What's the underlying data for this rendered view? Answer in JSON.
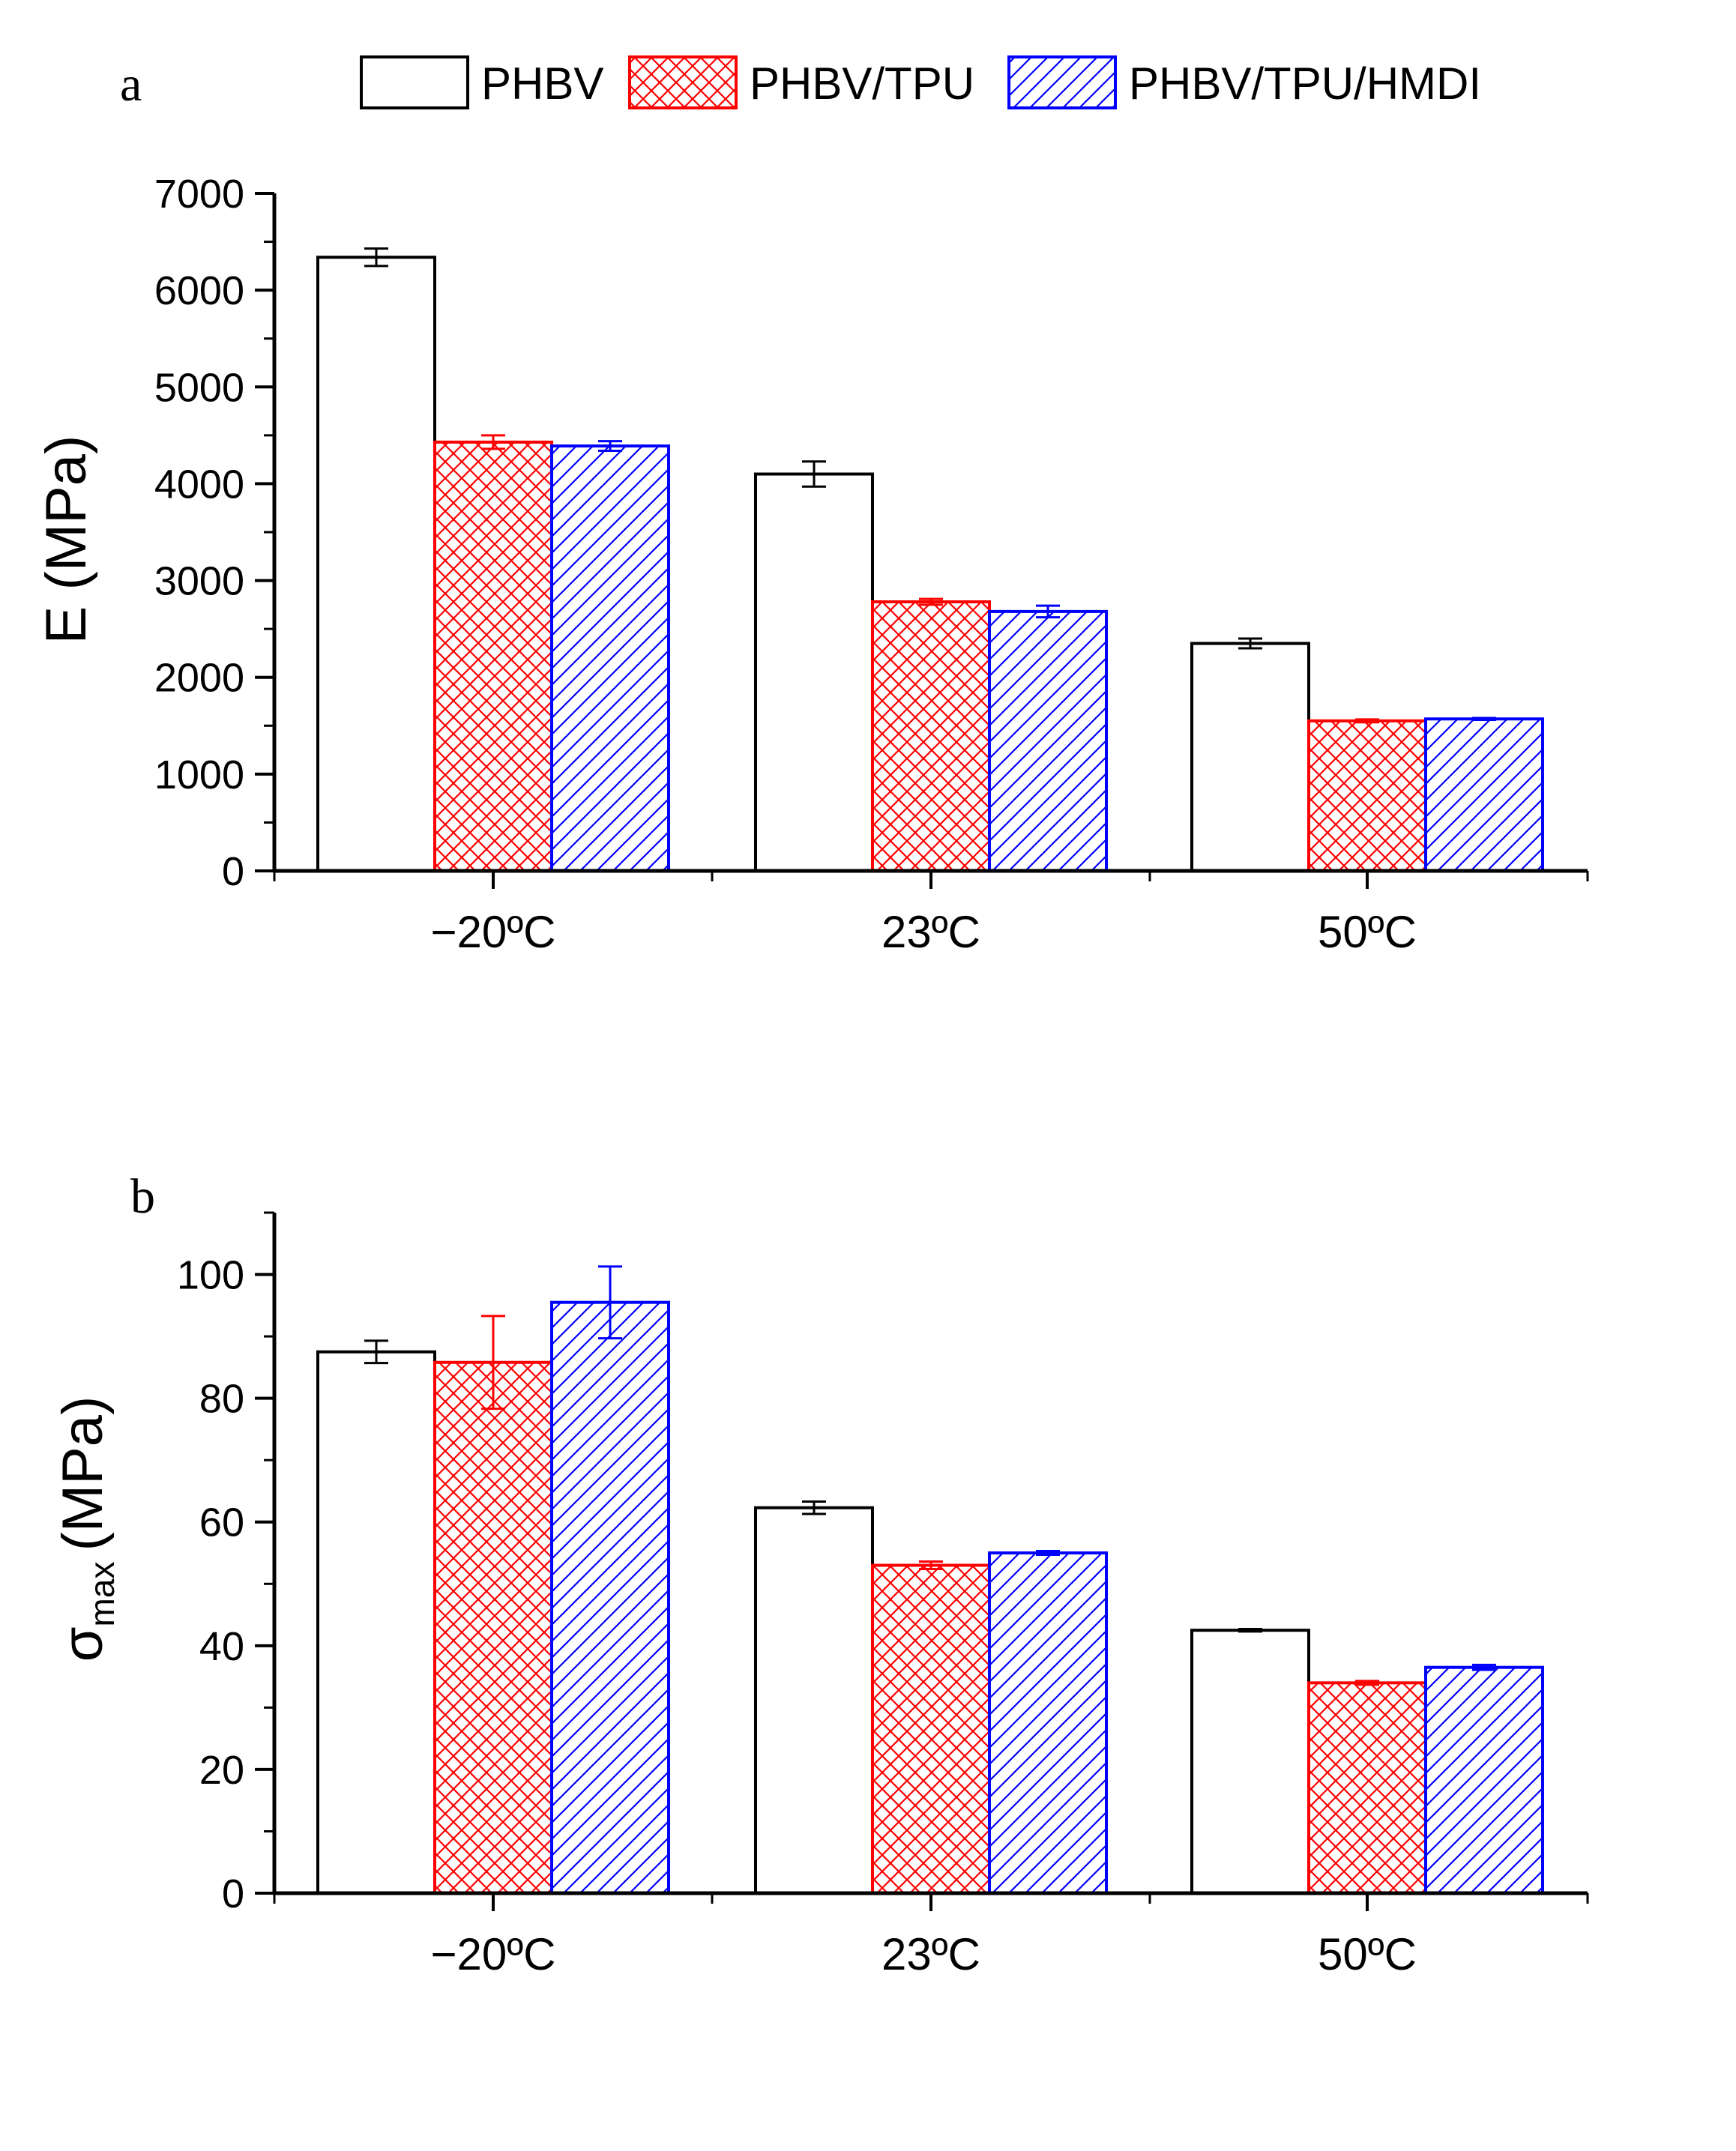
{
  "colors": {
    "PHBV": "#000000",
    "PHBV/TPU": "#ff0000",
    "PHBV/TPU/HMDI": "#0000ff"
  },
  "legend": [
    {
      "name": "PHBV",
      "pattern": "none"
    },
    {
      "name": "PHBV/TPU",
      "pattern": "crosshatch"
    },
    {
      "name": "PHBV/TPU/HMDI",
      "pattern": "diagonal"
    }
  ],
  "chart_data": [
    {
      "type": "bar",
      "panel": "a",
      "title": "",
      "xlabel": "",
      "ylabel": "E (MPa)",
      "ylim": [
        0,
        7000
      ],
      "yticks": [
        0,
        1000,
        2000,
        3000,
        4000,
        5000,
        6000,
        7000
      ],
      "categories": [
        "−20ºC",
        "23ºC",
        "50ºC"
      ],
      "series": [
        {
          "name": "PHBV",
          "values": [
            6340,
            4100,
            2350
          ],
          "errors": [
            90,
            130,
            50
          ]
        },
        {
          "name": "PHBV/TPU",
          "values": [
            4430,
            2780,
            1550
          ],
          "errors": [
            70,
            30,
            15
          ]
        },
        {
          "name": "PHBV/TPU/HMDI",
          "values": [
            4390,
            2680,
            1570
          ],
          "errors": [
            50,
            60,
            10
          ]
        }
      ]
    },
    {
      "type": "bar",
      "panel": "b",
      "title": "",
      "xlabel": "",
      "ylabel": "σ",
      "ylabel_sub": "max",
      "ylabel_unit": "(MPa)",
      "ylim": [
        0,
        110
      ],
      "yticks": [
        0,
        20,
        40,
        60,
        80,
        100
      ],
      "categories": [
        "−20ºC",
        "23ºC",
        "50ºC"
      ],
      "series": [
        {
          "name": "PHBV",
          "values": [
            87.5,
            62.3,
            42.5
          ],
          "errors": [
            1.8,
            1.0,
            0.2
          ]
        },
        {
          "name": "PHBV/TPU",
          "values": [
            85.8,
            53.0,
            34.0
          ],
          "errors": [
            7.5,
            0.6,
            0.3
          ]
        },
        {
          "name": "PHBV/TPU/HMDI",
          "values": [
            95.5,
            55.0,
            36.5
          ],
          "errors": [
            5.8,
            0.3,
            0.4
          ]
        }
      ]
    }
  ]
}
